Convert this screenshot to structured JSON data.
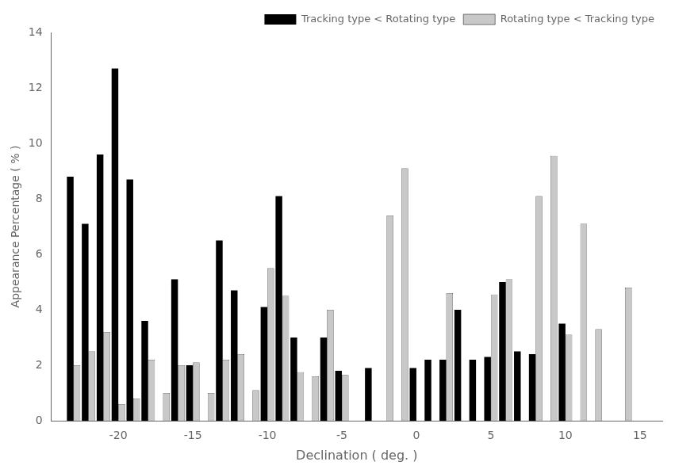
{
  "chart_data": {
    "type": "bar",
    "xlabel": "Declination ( deg. )",
    "ylabel": "Appearance Percentage ( % )",
    "x": [
      -23,
      -22,
      -21,
      -20,
      -19,
      -18,
      -17,
      -16,
      -15,
      -14,
      -13,
      -12,
      -11,
      -10,
      -9,
      -8,
      -7,
      -6,
      -5,
      -4,
      -3,
      -2,
      -1,
      0,
      1,
      2,
      3,
      4,
      5,
      6,
      7,
      8,
      9,
      10,
      11,
      12,
      13,
      14,
      15
    ],
    "series": [
      {
        "name": "Tracking type < Rotating type",
        "color": "#000000",
        "values": [
          8.8,
          7.1,
          9.6,
          12.7,
          8.7,
          3.6,
          0.0,
          5.1,
          2.0,
          0.0,
          6.5,
          4.7,
          0.0,
          4.1,
          8.1,
          3.0,
          0.0,
          3.0,
          1.8,
          0.0,
          1.9,
          0.0,
          0.0,
          1.9,
          2.2,
          2.2,
          4.0,
          2.2,
          2.3,
          5.0,
          2.5,
          2.4,
          0.0,
          3.5,
          0.0,
          0.0,
          0.0,
          0.0,
          0.0
        ]
      },
      {
        "name": "Rotating type < Tracking type",
        "color": "#c8c8c8",
        "values": [
          2.0,
          2.5,
          3.2,
          0.6,
          0.8,
          2.2,
          1.0,
          2.0,
          2.1,
          1.0,
          2.2,
          2.4,
          1.1,
          5.5,
          4.5,
          1.75,
          1.6,
          4.0,
          1.65,
          0.0,
          0.0,
          7.4,
          9.1,
          0.0,
          0.0,
          4.6,
          0.0,
          0.0,
          4.55,
          5.1,
          0.0,
          8.1,
          9.55,
          3.1,
          7.1,
          3.3,
          0.0,
          4.8,
          0.0
        ]
      }
    ],
    "xlim": [
      -24.5,
      16.5
    ],
    "xticks": [
      -20,
      -15,
      -10,
      -5,
      0,
      5,
      10,
      15
    ],
    "ylim": [
      0,
      14
    ],
    "yticks": [
      0,
      2,
      4,
      6,
      8,
      10,
      12,
      14
    ],
    "legend": "upper right",
    "grid": false
  }
}
